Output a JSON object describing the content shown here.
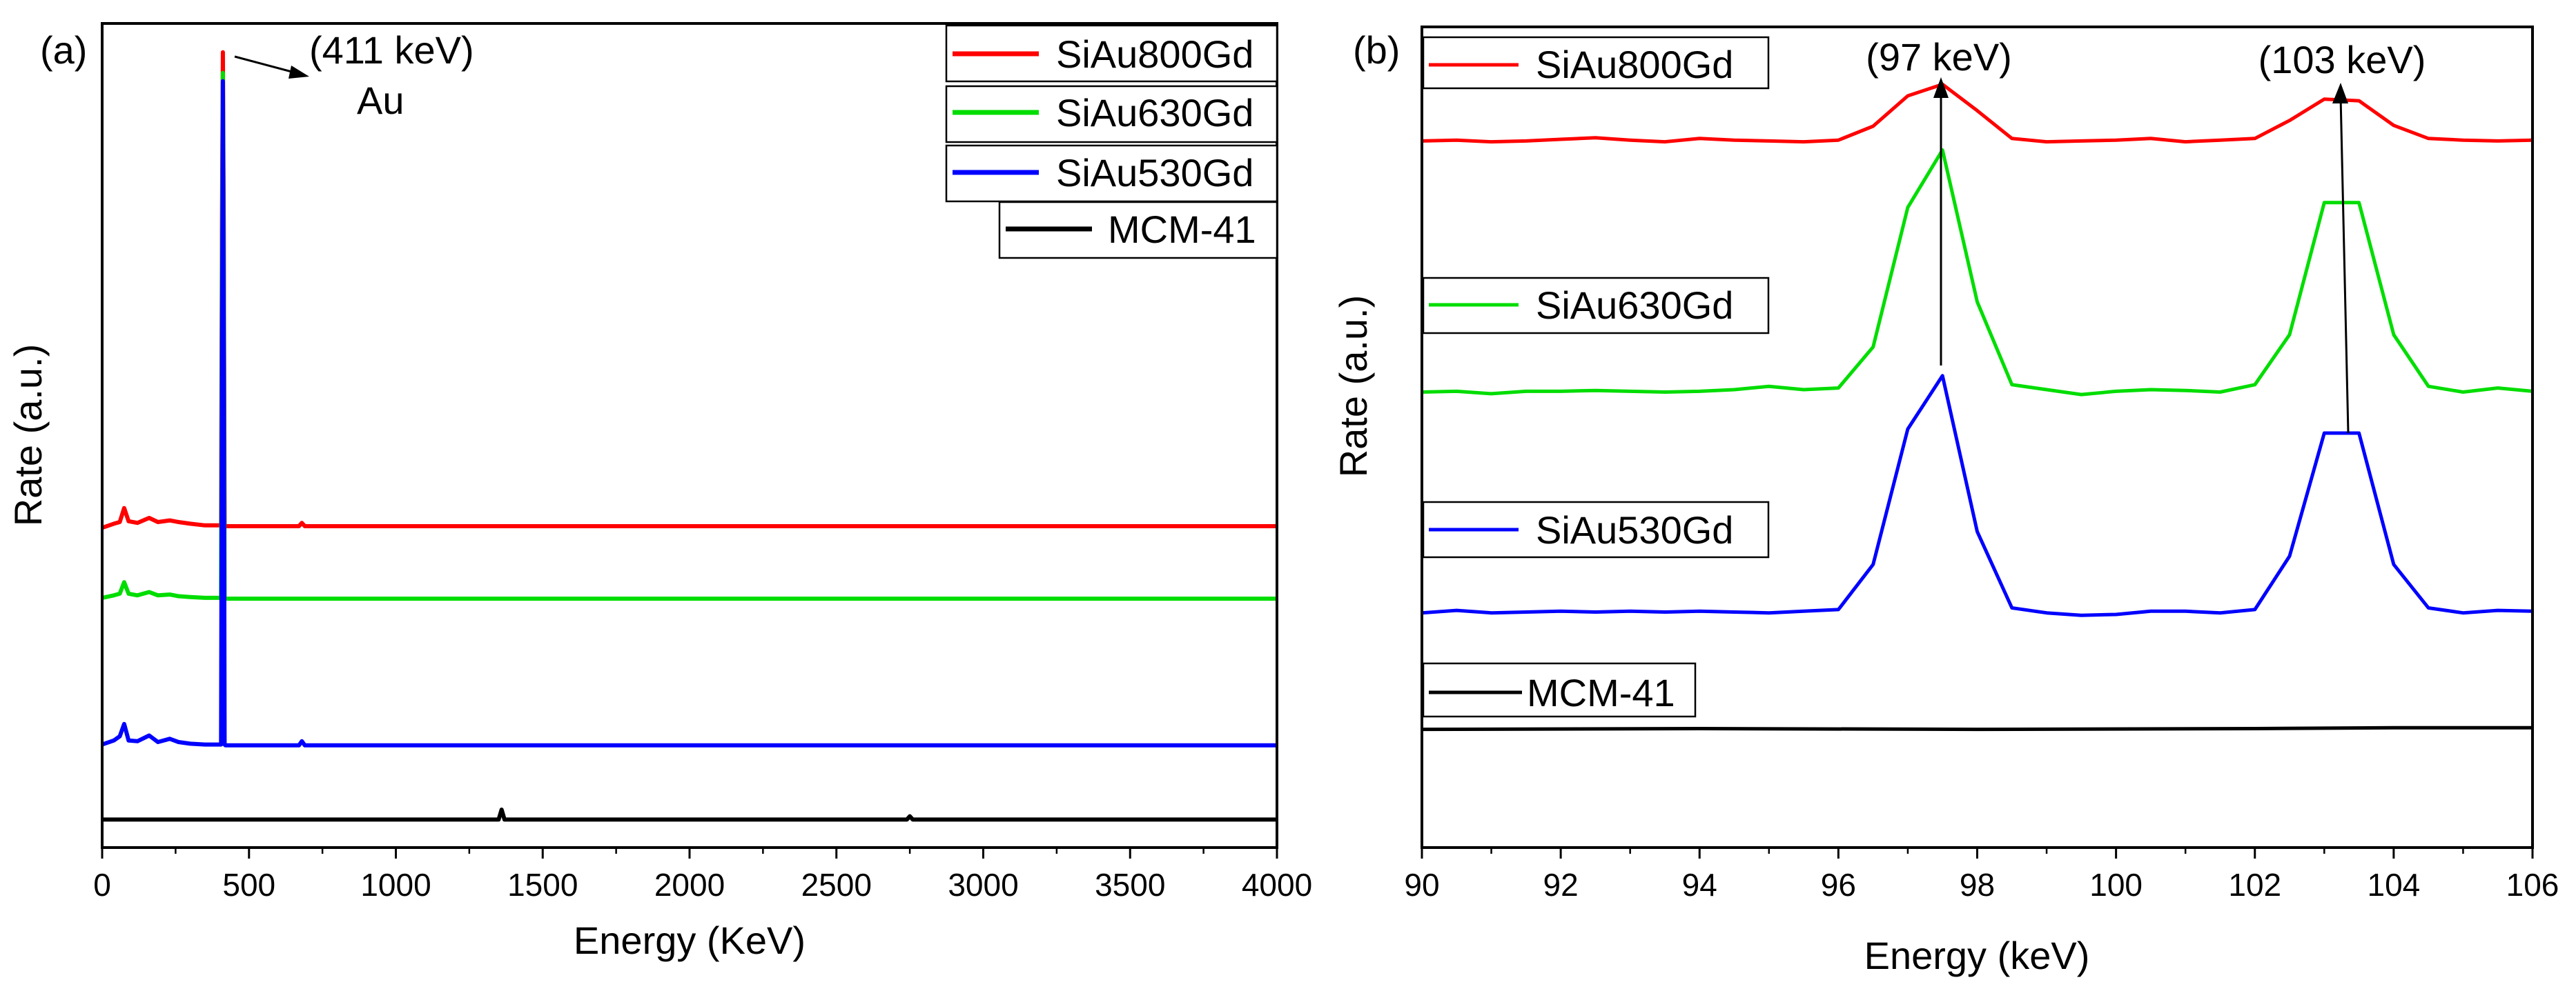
{
  "chart_data": [
    {
      "type": "line",
      "panel_label": "(a)",
      "xlabel": "Energy (KeV)",
      "ylabel": "Rate (a.u.)",
      "xlim": [
        0,
        4000
      ],
      "xticks": [
        0,
        500,
        1000,
        1500,
        2000,
        2500,
        3000,
        3500,
        4000
      ],
      "ylim": [
        0,
        100
      ],
      "grid": false,
      "legend_position": "top-right",
      "series": [
        {
          "name": "SiAu800Gd",
          "color": "#ff0000",
          "x": [
            0,
            40,
            60,
            75,
            90,
            120,
            160,
            190,
            230,
            260,
            300,
            350,
            405,
            408,
            411,
            414,
            417,
            420,
            600,
            670,
            680,
            690,
            4000
          ],
          "y": [
            38.8,
            39.3,
            39.5,
            41.2,
            39.6,
            39.4,
            40.0,
            39.5,
            39.7,
            39.5,
            39.3,
            39.1,
            39.1,
            75,
            96.5,
            75,
            39.1,
            39.0,
            39.0,
            39.0,
            39.4,
            39.0,
            39.0
          ]
        },
        {
          "name": "SiAu630Gd",
          "color": "#00dd00",
          "x": [
            0,
            40,
            60,
            75,
            90,
            120,
            160,
            190,
            230,
            260,
            300,
            350,
            405,
            408,
            411,
            414,
            417,
            420,
            4000
          ],
          "y": [
            30.3,
            30.6,
            30.8,
            32.2,
            30.8,
            30.6,
            31.0,
            30.6,
            30.7,
            30.5,
            30.4,
            30.3,
            30.3,
            70,
            94,
            70,
            30.3,
            30.2,
            30.2
          ]
        },
        {
          "name": "SiAu530Gd",
          "color": "#0000ff",
          "x": [
            0,
            40,
            60,
            75,
            90,
            120,
            160,
            190,
            230,
            260,
            300,
            350,
            405,
            408,
            411,
            414,
            417,
            420,
            600,
            670,
            680,
            690,
            4000
          ],
          "y": [
            12.5,
            13.0,
            13.5,
            15.0,
            13.0,
            12.9,
            13.6,
            12.8,
            13.2,
            12.8,
            12.6,
            12.5,
            12.5,
            60,
            93,
            60,
            12.5,
            12.4,
            12.4,
            12.4,
            12.9,
            12.4,
            12.4
          ]
        },
        {
          "name": "MCM-41",
          "color": "#000000",
          "x": [
            0,
            1350,
            1360,
            1370,
            2740,
            2750,
            2760,
            4000
          ],
          "y": [
            3.4,
            3.4,
            4.6,
            3.4,
            3.4,
            3.8,
            3.4,
            3.4
          ]
        }
      ],
      "annotations": [
        {
          "text": "(411 keV)",
          "x": 411,
          "y": 96.5
        },
        {
          "text": "Au"
        }
      ]
    },
    {
      "type": "line",
      "panel_label": "(b)",
      "xlabel": "Energy (keV)",
      "ylabel": "Rate (a.u.)",
      "xlim": [
        90,
        106
      ],
      "xticks": [
        90,
        92,
        94,
        96,
        98,
        100,
        102,
        104,
        106
      ],
      "ylim": [
        0,
        100
      ],
      "grid": false,
      "series": [
        {
          "name": "SiAu800Gd",
          "color": "#ff0000",
          "x": [
            90,
            90.5,
            91,
            91.5,
            92,
            92.5,
            93,
            93.5,
            94,
            94.5,
            95,
            95.5,
            96,
            96.5,
            97,
            97.5,
            98,
            98.5,
            99,
            99.5,
            100,
            100.5,
            101,
            101.5,
            102,
            102.5,
            103,
            103.5,
            104,
            104.5,
            105,
            105.5,
            106
          ],
          "y": [
            86.1,
            86.2,
            86.0,
            86.1,
            86.3,
            86.5,
            86.2,
            86.0,
            86.4,
            86.2,
            86.1,
            86.0,
            86.2,
            87.9,
            91.6,
            93.0,
            89.8,
            86.4,
            86.0,
            86.1,
            86.2,
            86.4,
            86.0,
            86.2,
            86.4,
            88.6,
            91.2,
            91.0,
            88.0,
            86.4,
            86.2,
            86.1,
            86.2
          ]
        },
        {
          "name": "SiAu630Gd",
          "color": "#00dd00",
          "x": [
            90,
            90.5,
            91,
            91.5,
            92,
            92.5,
            93,
            93.5,
            94,
            94.5,
            95,
            95.5,
            96,
            96.5,
            97,
            97.5,
            98,
            98.5,
            99,
            99.5,
            100,
            100.5,
            101,
            101.5,
            102,
            102.5,
            103,
            103.5,
            104,
            104.5,
            105,
            105.5,
            106
          ],
          "y": [
            55.5,
            55.6,
            55.3,
            55.6,
            55.6,
            55.7,
            55.6,
            55.5,
            55.6,
            55.8,
            56.2,
            55.8,
            56.0,
            61.0,
            78.0,
            85.0,
            66.5,
            56.4,
            55.8,
            55.2,
            55.6,
            55.8,
            55.7,
            55.5,
            56.4,
            62.5,
            78.6,
            78.6,
            62.5,
            56.2,
            55.5,
            56.0,
            55.6
          ]
        },
        {
          "name": "SiAu530Gd",
          "color": "#0000ff",
          "x": [
            90,
            90.5,
            91,
            91.5,
            92,
            92.5,
            93,
            93.5,
            94,
            94.5,
            95,
            95.5,
            96,
            96.5,
            97,
            97.5,
            98,
            98.5,
            99,
            99.5,
            100,
            100.5,
            101,
            101.5,
            102,
            102.5,
            103,
            103.5,
            104,
            104.5,
            105,
            105.5,
            106
          ],
          "y": [
            28.6,
            28.9,
            28.6,
            28.7,
            28.8,
            28.7,
            28.8,
            28.7,
            28.8,
            28.7,
            28.6,
            28.8,
            29.0,
            34.5,
            51.0,
            57.5,
            38.5,
            29.2,
            28.6,
            28.3,
            28.4,
            28.8,
            28.8,
            28.6,
            29.0,
            35.5,
            50.5,
            50.5,
            34.5,
            29.2,
            28.6,
            28.9,
            28.8
          ]
        },
        {
          "name": "MCM-41",
          "color": "#000000",
          "x": [
            90,
            94,
            98,
            102,
            104,
            106
          ],
          "y": [
            14.4,
            14.5,
            14.4,
            14.5,
            14.6,
            14.6
          ]
        }
      ],
      "annotations": [
        {
          "text": "(97 keV)",
          "x": 97.5,
          "y": 93.0
        },
        {
          "text": "(103 keV)",
          "x": 103.2,
          "y": 91.2
        }
      ]
    }
  ]
}
